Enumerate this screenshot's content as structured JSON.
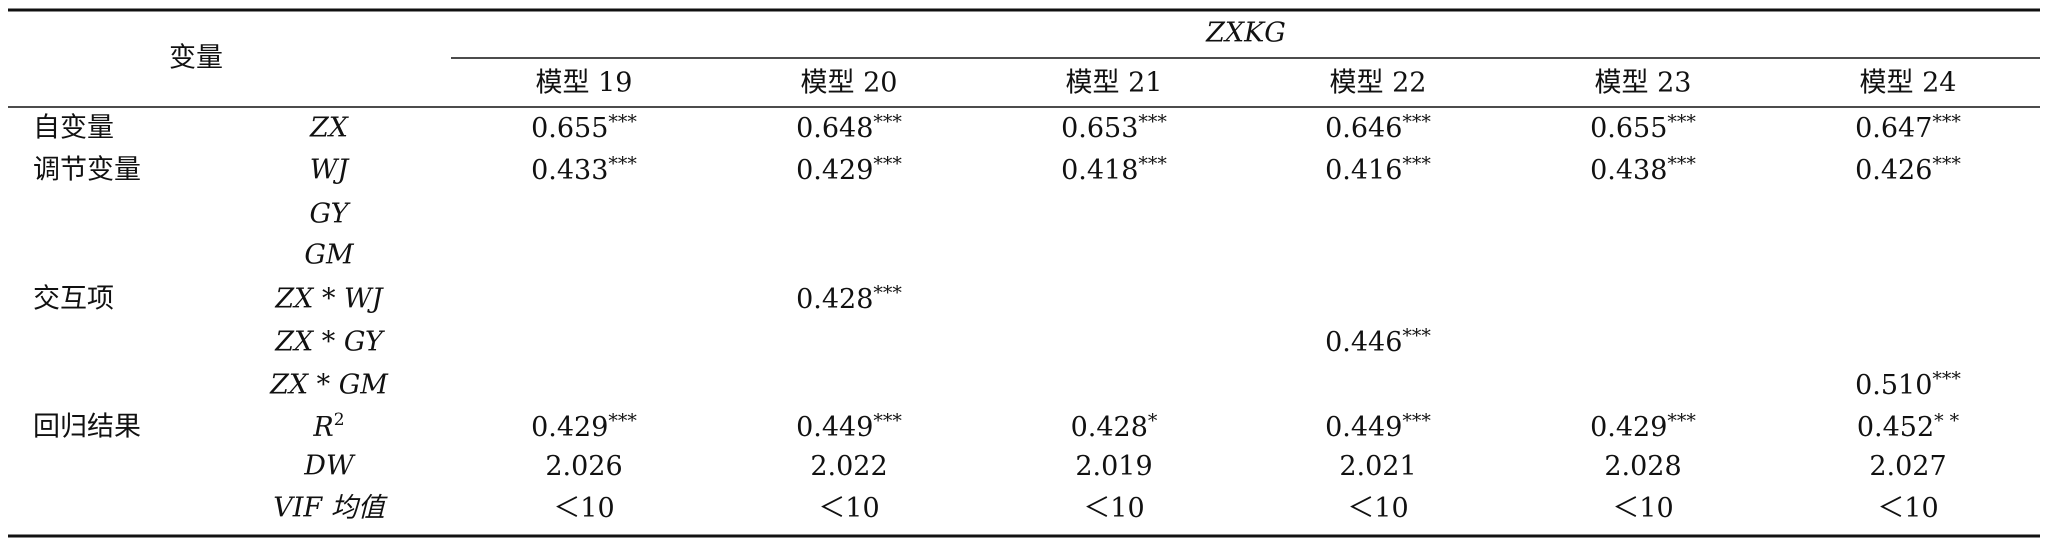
{
  "header": {
    "corner": "变量",
    "group": "ZXKG",
    "models": [
      "模型 19",
      "模型 20",
      "模型 21",
      "模型 22",
      "模型 23",
      "模型 24"
    ]
  },
  "rows": [
    {
      "group": "自变量",
      "variable": "ZX",
      "cells": [
        {
          "value": "0.655",
          "sig": "***"
        },
        {
          "value": "0.648",
          "sig": "***"
        },
        {
          "value": "0.653",
          "sig": "***"
        },
        {
          "value": "0.646",
          "sig": "***"
        },
        {
          "value": "0.655",
          "sig": "***"
        },
        {
          "value": "0.647",
          "sig": "***"
        }
      ]
    },
    {
      "group": "调节变量",
      "variable": "WJ",
      "cells": [
        {
          "value": "0.433",
          "sig": "***"
        },
        {
          "value": "0.429",
          "sig": "***"
        },
        {
          "value": "0.418",
          "sig": "***"
        },
        {
          "value": "0.416",
          "sig": "***"
        },
        {
          "value": "0.438",
          "sig": "***"
        },
        {
          "value": "0.426",
          "sig": "***"
        }
      ]
    },
    {
      "group": null,
      "variable": "GY",
      "cells": [
        null,
        null,
        null,
        null,
        null,
        null
      ]
    },
    {
      "group": null,
      "variable": "GM",
      "cells": [
        null,
        null,
        null,
        null,
        null,
        null
      ]
    },
    {
      "group": "交互项",
      "variable": "ZX * WJ",
      "cells": [
        null,
        {
          "value": "0.428",
          "sig": "***"
        },
        null,
        null,
        null,
        null
      ]
    },
    {
      "group": null,
      "variable": "ZX * GY",
      "cells": [
        null,
        null,
        null,
        {
          "value": "0.446",
          "sig": "***"
        },
        null,
        null
      ]
    },
    {
      "group": null,
      "variable": "ZX * GM",
      "cells": [
        null,
        null,
        null,
        null,
        null,
        {
          "value": "0.510",
          "sig": "***"
        }
      ]
    },
    {
      "group": "回归结果",
      "variable": {
        "text": "R",
        "sup": "2"
      },
      "cells": [
        {
          "value": "0.429",
          "sig": "***"
        },
        {
          "value": "0.449",
          "sig": "***"
        },
        {
          "value": "0.428",
          "sig": "*"
        },
        {
          "value": "0.449",
          "sig": "***"
        },
        {
          "value": "0.429",
          "sig": "***"
        },
        {
          "value": "0.452",
          "sig": "* *"
        }
      ]
    },
    {
      "group": null,
      "variable": "DW",
      "cells": [
        {
          "value": "2.026"
        },
        {
          "value": "2.022"
        },
        {
          "value": "2.019"
        },
        {
          "value": "2.021"
        },
        {
          "value": "2.028"
        },
        {
          "value": "2.027"
        }
      ]
    },
    {
      "group": null,
      "variable": "VIF 均值",
      "cells": [
        {
          "value": "＜10"
        },
        {
          "value": "＜10"
        },
        {
          "value": "＜10"
        },
        {
          "value": "＜10"
        },
        {
          "value": "＜10"
        },
        {
          "value": "＜10"
        }
      ]
    }
  ]
}
